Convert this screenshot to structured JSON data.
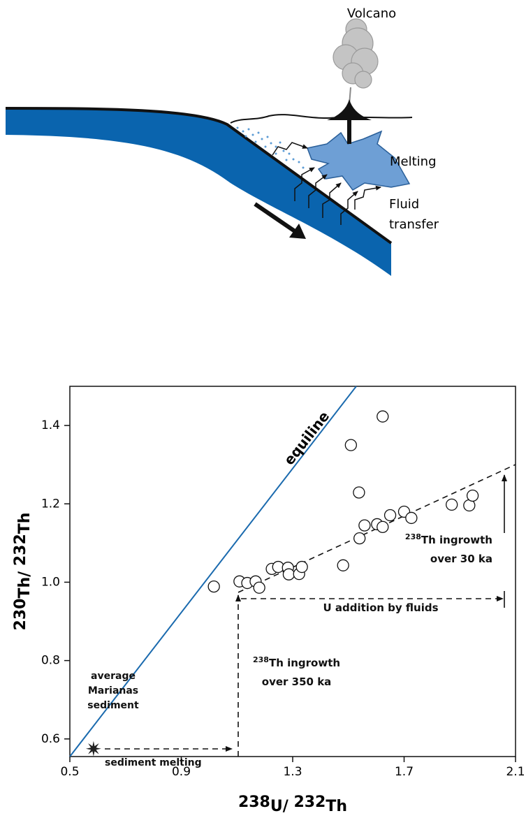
{
  "diagram": {
    "labels": {
      "volcano": "Volcano",
      "melting": "Melting",
      "fluid": "Fluid",
      "transfer": "transfer"
    }
  },
  "chart_data": {
    "type": "scatter",
    "x_label": [
      "238",
      "U/ ",
      "232",
      "Th"
    ],
    "y_label": [
      "230",
      "Th/ ",
      "232",
      "Th"
    ],
    "xlim": [
      0.5,
      2.1
    ],
    "ylim": [
      0.555,
      1.5
    ],
    "xticks": [
      0.5,
      0.9,
      1.3,
      1.7,
      2.1
    ],
    "yticks": [
      0.6,
      0.8,
      {
        "value": 1,
        "label": "1.0"
      },
      1.2,
      1.4
    ],
    "series": [
      {
        "color": "#ffffff",
        "x": [
          1.017,
          1.109,
          1.137,
          1.167,
          1.18,
          1.225,
          1.248,
          1.283,
          1.286,
          1.323,
          1.333,
          1.481,
          1.509,
          1.538,
          1.54,
          1.558,
          1.603,
          1.623,
          1.623,
          1.65,
          1.7,
          1.726,
          1.871,
          1.934,
          1.946
        ],
        "values": [
          0.989,
          1.002,
          0.998,
          1.002,
          0.986,
          1.034,
          1.039,
          1.037,
          1.02,
          1.021,
          1.039,
          1.043,
          1.35,
          1.229,
          1.112,
          1.145,
          1.148,
          1.141,
          1.423,
          1.171,
          1.18,
          1.164,
          1.198,
          1.196,
          1.221
        ]
      },
      {
        "name": "average Marianas sediment",
        "color": "#222222",
        "x": [
          0.585
        ],
        "values": [
          0.575
        ]
      }
    ],
    "annotations": {
      "equiline": "equiline",
      "ingrowth_30": {
        "sup": "238",
        "line1": "Th ingrowth",
        "line2": "over 30 ka"
      },
      "u_addition": "U addition by fluids",
      "ingrowth_350": {
        "sup": "238",
        "line1": "Th ingrowth",
        "line2": "over 350 ka"
      },
      "sediment_melting": "sediment melting"
    }
  }
}
